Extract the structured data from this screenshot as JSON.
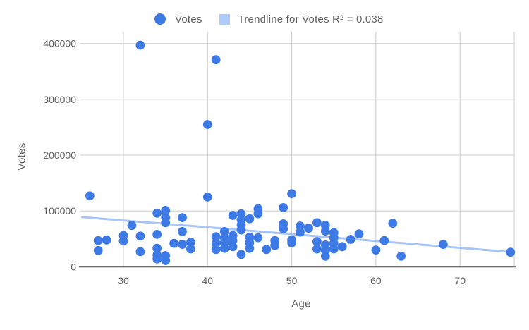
{
  "colors": {
    "background": "#ffffff",
    "point": "#3D7AE5",
    "trendline": "#A7C5F6",
    "trendline_swatch": "#AECBFA",
    "gridline": "#cccccc",
    "axis_line": "#424242",
    "tick_label": "#616161",
    "axis_title": "#616161",
    "legend_text": "#616161"
  },
  "legend": {
    "votes_label": "Votes",
    "trendline_label": "Trendline for Votes R² = 0.038"
  },
  "chart_data": {
    "type": "scatter",
    "title": "",
    "xlabel": "Age",
    "ylabel": "Votes",
    "x_ticks": [
      30,
      40,
      50,
      60,
      70
    ],
    "y_ticks": [
      0,
      100000,
      200000,
      300000,
      400000
    ],
    "xlim": [
      25.1,
      76.4
    ],
    "ylim": [
      0,
      400000
    ],
    "grid": true,
    "legend_position": "top",
    "legend": [
      {
        "label": "Votes",
        "marker": "circle",
        "color": "#3D7AE5"
      },
      {
        "label": "Trendline for Votes R² = 0.038",
        "marker": "square",
        "color": "#AECBFA"
      }
    ],
    "series": [
      {
        "name": "Votes",
        "color": "#3D7AE5",
        "points": [
          [
            26,
            127000
          ],
          [
            27,
            47000
          ],
          [
            27,
            29000
          ],
          [
            28,
            48000
          ],
          [
            30,
            56000
          ],
          [
            30,
            46000
          ],
          [
            31,
            74000
          ],
          [
            32,
            55000
          ],
          [
            32,
            27000
          ],
          [
            32,
            397000
          ],
          [
            34,
            96000
          ],
          [
            34,
            58000
          ],
          [
            34,
            33000
          ],
          [
            34,
            21000
          ],
          [
            34,
            14000
          ],
          [
            35,
            101000
          ],
          [
            35,
            88000
          ],
          [
            35,
            79000
          ],
          [
            35,
            20000
          ],
          [
            35,
            11000
          ],
          [
            36,
            42000
          ],
          [
            37,
            88000
          ],
          [
            37,
            63000
          ],
          [
            37,
            40000
          ],
          [
            38,
            44000
          ],
          [
            38,
            32000
          ],
          [
            40,
            255000
          ],
          [
            40,
            125000
          ],
          [
            41,
            371000
          ],
          [
            41,
            54000
          ],
          [
            41,
            42000
          ],
          [
            41,
            31000
          ],
          [
            42,
            63000
          ],
          [
            42,
            52000
          ],
          [
            42,
            43000
          ],
          [
            42,
            33000
          ],
          [
            43,
            92000
          ],
          [
            43,
            56000
          ],
          [
            43,
            47000
          ],
          [
            43,
            36000
          ],
          [
            44,
            95000
          ],
          [
            44,
            84000
          ],
          [
            44,
            75000
          ],
          [
            44,
            66000
          ],
          [
            44,
            22000
          ],
          [
            45,
            86000
          ],
          [
            45,
            53000
          ],
          [
            45,
            43000
          ],
          [
            45,
            33000
          ],
          [
            46,
            104000
          ],
          [
            46,
            95000
          ],
          [
            46,
            52000
          ],
          [
            47,
            31000
          ],
          [
            48,
            47000
          ],
          [
            48,
            38000
          ],
          [
            49,
            106000
          ],
          [
            49,
            77000
          ],
          [
            49,
            68000
          ],
          [
            50,
            131000
          ],
          [
            50,
            48000
          ],
          [
            50,
            43000
          ],
          [
            51,
            73000
          ],
          [
            51,
            62000
          ],
          [
            52,
            69000
          ],
          [
            53,
            79000
          ],
          [
            53,
            45000
          ],
          [
            53,
            32000
          ],
          [
            54,
            74000
          ],
          [
            54,
            64000
          ],
          [
            54,
            39000
          ],
          [
            54,
            29000
          ],
          [
            54,
            19000
          ],
          [
            55,
            61000
          ],
          [
            55,
            52000
          ],
          [
            55,
            42000
          ],
          [
            55,
            32000
          ],
          [
            56,
            36000
          ],
          [
            57,
            49000
          ],
          [
            58,
            59000
          ],
          [
            60,
            30000
          ],
          [
            61,
            47000
          ],
          [
            62,
            78000
          ],
          [
            63,
            19000
          ],
          [
            68,
            40000
          ],
          [
            76,
            26000
          ]
        ]
      }
    ],
    "trendline": {
      "name": "Trendline for Votes",
      "r_squared": 0.038,
      "color": "#A7C5F6",
      "x_start": 25.1,
      "value_start": 89000,
      "x_end": 76.4,
      "value_end": 26000
    }
  }
}
